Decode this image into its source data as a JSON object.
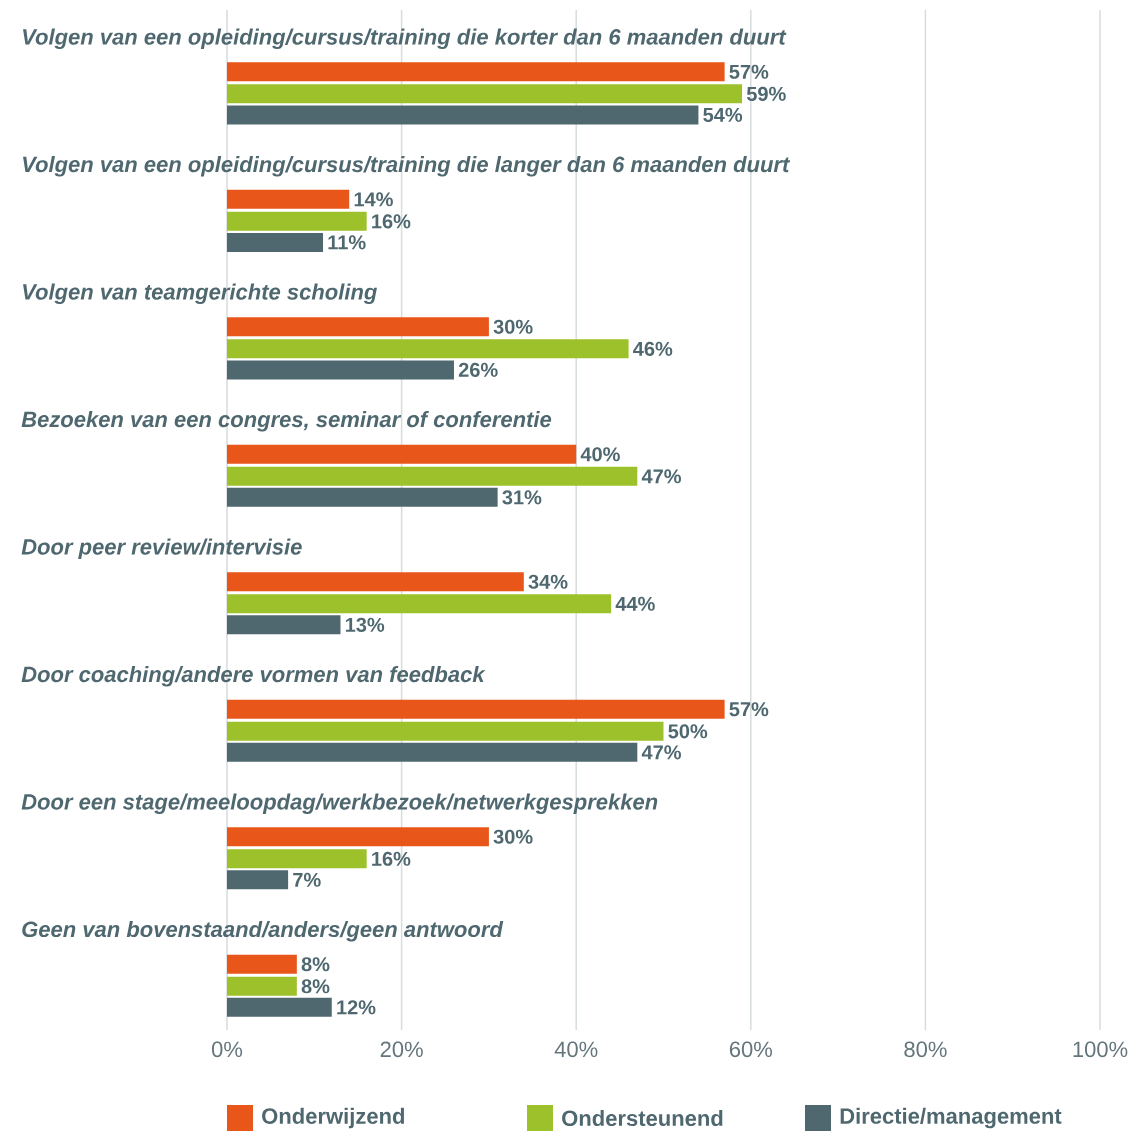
{
  "chart_data": {
    "type": "bar",
    "orientation": "horizontal",
    "categories": [
      "Volgen van een opleiding/cursus/training die korter dan 6 maanden duurt",
      "Volgen van een opleiding/cursus/training die langer dan 6 maanden duurt",
      "Volgen van teamgerichte scholing",
      "Bezoeken van een congres, seminar of conferentie",
      "Door peer review/intervisie",
      "Door coaching/andere vormen van feedback",
      "Door een stage/meeloopdag/werkbezoek/netwerkgesprekken",
      "Geen van bovenstaand/anders/geen antwoord"
    ],
    "series": [
      {
        "name": "Onderwijzend",
        "color": "#e8561a",
        "values": [
          57,
          14,
          30,
          40,
          34,
          57,
          30,
          8
        ],
        "value_labels": [
          "57%",
          "14%",
          "30%",
          "40%",
          "34%",
          "57%",
          "30%",
          "8%"
        ]
      },
      {
        "name": "Ondersteunend",
        "color": "#9cc12a",
        "values": [
          59,
          16,
          46,
          47,
          44,
          50,
          16,
          8
        ],
        "value_labels": [
          "59%",
          "16%",
          "46%",
          "47%",
          "44%",
          "50%",
          "16%",
          "8%"
        ]
      },
      {
        "name": "Directie/management",
        "color": "#4f6870",
        "values": [
          54,
          11,
          26,
          31,
          13,
          47,
          7,
          12
        ],
        "value_labels": [
          "54%",
          "11%",
          "26%",
          "31%",
          "13%",
          "47%",
          "7%",
          "12%"
        ]
      }
    ],
    "xlim": [
      0,
      100
    ],
    "xticks": [
      {
        "value": 0,
        "label": "0%"
      },
      {
        "value": 20,
        "label": "20%"
      },
      {
        "value": 40,
        "label": "40%"
      },
      {
        "value": 60,
        "label": "60%"
      },
      {
        "value": 80,
        "label": "80%"
      },
      {
        "value": 100,
        "label": "100%"
      }
    ],
    "grid": "x",
    "legend": "bottom"
  }
}
